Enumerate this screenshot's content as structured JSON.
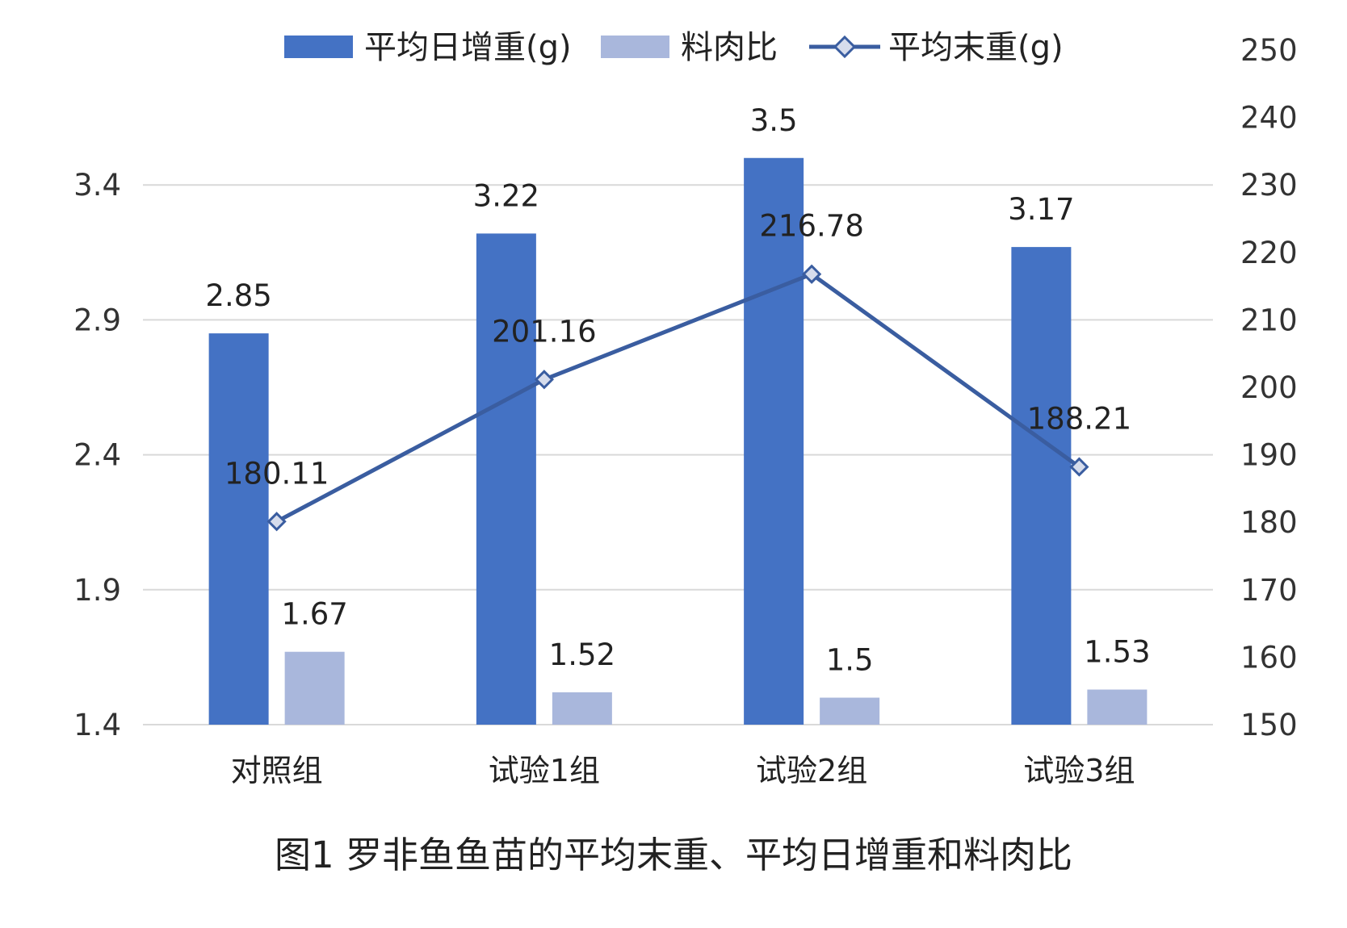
{
  "chart_data": {
    "type": "bar",
    "categories": [
      "对照组",
      "试验1组",
      "试验2组",
      "试验3组"
    ],
    "series": [
      {
        "name": "平均日增重(g)",
        "type": "bar",
        "axis": "left",
        "color": "#4472C4",
        "values": [
          2.85,
          3.22,
          3.5,
          3.17
        ]
      },
      {
        "name": "料肉比",
        "type": "bar",
        "axis": "left",
        "color": "#A9B7DC",
        "values": [
          1.67,
          1.52,
          1.5,
          1.53
        ]
      },
      {
        "name": "平均末重(g)",
        "type": "line",
        "axis": "right",
        "color": "#3A5DA0",
        "marker": "diamond",
        "values": [
          180.11,
          201.16,
          216.78,
          188.21
        ]
      }
    ],
    "left_axis": {
      "ylim": [
        1.4,
        3.9
      ],
      "ticks": [
        "1.4",
        "1.9",
        "2.4",
        "2.9",
        "3.4"
      ]
    },
    "right_axis": {
      "ylim": [
        150,
        250
      ],
      "ticks": [
        "150",
        "160",
        "170",
        "180",
        "190",
        "200",
        "210",
        "220",
        "230",
        "240",
        "250"
      ]
    },
    "data_labels": {
      "daily_gain": [
        "2.85",
        "3.22",
        "3.5",
        "3.17"
      ],
      "feed_ratio": [
        "1.67",
        "1.52",
        "1.5",
        "1.53"
      ],
      "final_weight": [
        "180.11",
        "201.16",
        "216.78",
        "188.21"
      ]
    },
    "legend": {
      "position": "top"
    },
    "grid": true,
    "caption": "图1 罗非鱼鱼苗的平均末重、平均日增重和料肉比"
  }
}
